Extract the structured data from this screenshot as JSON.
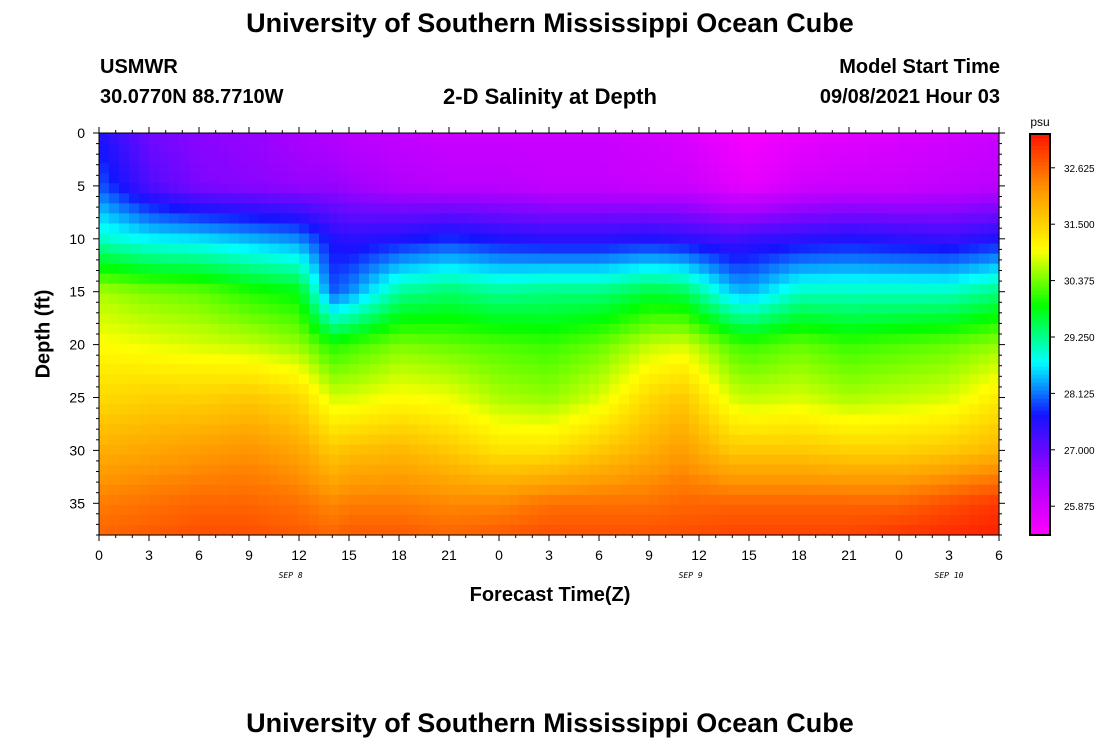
{
  "header": {
    "title": "University of Southern Mississippi Ocean Cube",
    "station": "USMWR",
    "coords": "30.0770N  88.7710W",
    "subtitle": "2-D Salinity at Depth",
    "model_start_label": "Model Start Time",
    "model_start_value": "09/08/2021 Hour 03"
  },
  "footer": {
    "title": "University of Southern Mississippi Ocean Cube"
  },
  "chart_data": {
    "type": "heatmap",
    "title": "2-D Salinity at Depth",
    "xlabel": "Forecast Time(Z)",
    "ylabel": "Depth (ft)",
    "x_hours_range": [
      0,
      54
    ],
    "x_tick_step_hours": 3,
    "x_tick_labels": [
      "0",
      "3",
      "6",
      "9",
      "12",
      "15",
      "18",
      "21",
      "0",
      "3",
      "6",
      "9",
      "12",
      "15",
      "18",
      "21",
      "0",
      "3",
      "6"
    ],
    "date_labels": [
      {
        "label": "SEP 8",
        "hour": 11.5
      },
      {
        "label": "SEP 9",
        "hour": 35.5
      },
      {
        "label": "SEP 10",
        "hour": 51.0
      }
    ],
    "ylim": [
      0,
      38
    ],
    "y_ticks": [
      0,
      5,
      10,
      15,
      20,
      25,
      30,
      35
    ],
    "y_tick_labels": [
      "0",
      "5",
      "10",
      "15",
      "20",
      "25",
      "30",
      "35"
    ],
    "colorbar": {
      "units": "psu",
      "range": [
        25.3,
        33.3
      ],
      "tick_values": [
        25.875,
        27.0,
        28.125,
        29.25,
        30.375,
        31.5,
        32.625
      ],
      "tick_labels": [
        "25.875",
        "27.000",
        "28.125",
        "29.250",
        "30.375",
        "31.500",
        "32.625"
      ]
    },
    "profile_depths_ft": [
      0,
      5,
      10,
      15,
      20,
      25,
      30,
      35,
      38
    ],
    "profiles": [
      {
        "hour": 0,
        "values": [
          27.6,
          28.0,
          29.0,
          30.6,
          31.0,
          31.4,
          31.9,
          32.4,
          32.6
        ]
      },
      {
        "hour": 3,
        "values": [
          26.9,
          27.2,
          28.7,
          30.4,
          30.9,
          31.5,
          32.0,
          32.5,
          32.7
        ]
      },
      {
        "hour": 6,
        "values": [
          26.7,
          26.8,
          28.6,
          30.3,
          30.8,
          31.5,
          32.1,
          32.6,
          32.8
        ]
      },
      {
        "hour": 9,
        "values": [
          26.6,
          26.7,
          28.4,
          30.0,
          30.7,
          31.6,
          32.2,
          32.6,
          32.8
        ]
      },
      {
        "hour": 12,
        "values": [
          26.4,
          26.6,
          28.2,
          29.8,
          30.5,
          31.4,
          32.0,
          32.5,
          32.7
        ]
      },
      {
        "hour": 14,
        "values": [
          26.3,
          26.6,
          27.6,
          28.0,
          30.0,
          30.8,
          31.6,
          32.3,
          32.6
        ]
      },
      {
        "hour": 15,
        "values": [
          26.2,
          26.5,
          27.5,
          28.2,
          30.1,
          30.8,
          31.7,
          32.4,
          32.7
        ]
      },
      {
        "hour": 18,
        "values": [
          26.1,
          26.3,
          27.6,
          29.2,
          30.4,
          31.0,
          31.8,
          32.4,
          32.7
        ]
      },
      {
        "hour": 21,
        "values": [
          26.0,
          26.2,
          27.8,
          29.4,
          30.3,
          30.9,
          31.6,
          32.3,
          32.6
        ]
      },
      {
        "hour": 24,
        "values": [
          26.0,
          26.2,
          27.6,
          29.2,
          30.2,
          30.6,
          31.3,
          32.3,
          32.7
        ]
      },
      {
        "hour": 27,
        "values": [
          26.0,
          26.1,
          27.5,
          29.3,
          30.1,
          30.5,
          31.3,
          32.5,
          32.8
        ]
      },
      {
        "hour": 30,
        "values": [
          26.0,
          26.1,
          27.5,
          29.3,
          30.3,
          30.8,
          31.6,
          32.5,
          32.8
        ]
      },
      {
        "hour": 33,
        "values": [
          25.9,
          26.0,
          27.6,
          29.6,
          30.7,
          31.4,
          31.9,
          32.5,
          32.8
        ]
      },
      {
        "hour": 35,
        "values": [
          25.8,
          26.0,
          27.5,
          29.5,
          30.8,
          31.6,
          32.1,
          32.6,
          32.8
        ]
      },
      {
        "hour": 38,
        "values": [
          25.5,
          25.7,
          27.3,
          28.5,
          30.2,
          30.8,
          31.6,
          32.6,
          32.9
        ]
      },
      {
        "hour": 39,
        "values": [
          25.4,
          25.6,
          27.4,
          28.4,
          30.1,
          30.7,
          31.6,
          32.6,
          32.9
        ]
      },
      {
        "hour": 42,
        "values": [
          25.6,
          25.9,
          27.5,
          29.0,
          30.3,
          30.8,
          31.6,
          32.6,
          32.9
        ]
      },
      {
        "hour": 45,
        "values": [
          25.7,
          26.0,
          27.6,
          29.0,
          30.1,
          30.6,
          31.5,
          32.6,
          32.9
        ]
      },
      {
        "hour": 48,
        "values": [
          25.8,
          26.0,
          27.5,
          29.0,
          30.2,
          30.7,
          31.5,
          32.6,
          33.0
        ]
      },
      {
        "hour": 51,
        "values": [
          25.9,
          26.1,
          27.4,
          29.0,
          30.3,
          30.8,
          31.6,
          32.8,
          33.1
        ]
      },
      {
        "hour": 54,
        "values": [
          26.0,
          26.2,
          27.6,
          29.3,
          30.5,
          31.2,
          31.8,
          33.0,
          33.2
        ]
      }
    ]
  }
}
